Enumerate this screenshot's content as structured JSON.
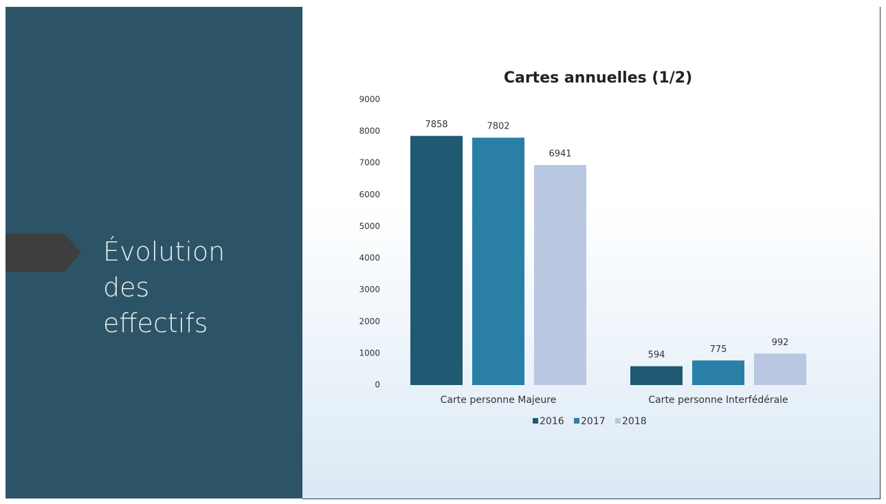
{
  "slide_title": "Évolution des effectifs",
  "chart_data": {
    "type": "bar",
    "title": "Cartes annuelles (1/2)",
    "categories": [
      "Carte personne Majeure",
      "Carte personne Interfédérale"
    ],
    "series": [
      {
        "name": "2016",
        "color": "#1f5a72",
        "values": [
          7858,
          594
        ]
      },
      {
        "name": "2017",
        "color": "#2a7fa6",
        "values": [
          7802,
          775
        ]
      },
      {
        "name": "2018",
        "color": "#b9c8e0",
        "values": [
          6941,
          992
        ]
      }
    ],
    "ylim": [
      0,
      9000
    ],
    "yticks": [
      0,
      1000,
      2000,
      3000,
      4000,
      5000,
      6000,
      7000,
      8000,
      9000
    ],
    "grid": false,
    "legend": "bottom"
  }
}
